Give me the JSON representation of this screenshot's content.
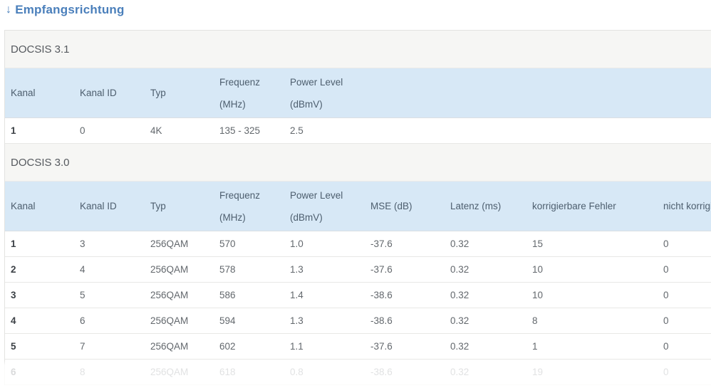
{
  "title": {
    "arrow": "↓",
    "text": "Empfangsrichtung"
  },
  "theme": {
    "accent_blue": "#4a7fbb",
    "table_header_bg": "#d7e8f6",
    "section_header_bg": "#f6f6f4"
  },
  "sections": [
    {
      "name": "DOCSIS 3.1",
      "grid": "grid-31",
      "columns": [
        {
          "lines": [
            "Kanal"
          ]
        },
        {
          "lines": [
            "Kanal ID"
          ]
        },
        {
          "lines": [
            "Typ"
          ]
        },
        {
          "lines": [
            "Frequenz",
            "(MHz)"
          ]
        },
        {
          "lines": [
            "Power Level",
            "(dBmV)"
          ]
        },
        {
          "lines": [
            ""
          ]
        }
      ],
      "rows": [
        [
          "1",
          "0",
          "4K",
          "135 - 325",
          "2.5",
          ""
        ]
      ],
      "last_row_faded": false
    },
    {
      "name": "DOCSIS 3.0",
      "grid": "grid-30",
      "columns": [
        {
          "lines": [
            "Kanal"
          ]
        },
        {
          "lines": [
            "Kanal ID"
          ]
        },
        {
          "lines": [
            "Typ"
          ]
        },
        {
          "lines": [
            "Frequenz",
            "(MHz)"
          ]
        },
        {
          "lines": [
            "Power Level",
            "(dBmV)"
          ]
        },
        {
          "lines": [
            "MSE (dB)"
          ]
        },
        {
          "lines": [
            "Latenz (ms)"
          ]
        },
        {
          "lines": [
            "korrigierbare Fehler"
          ]
        },
        {
          "lines": [
            "nicht korrigierbare Fehler"
          ]
        }
      ],
      "rows": [
        [
          "1",
          "3",
          "256QAM",
          "570",
          "1.0",
          "-37.6",
          "0.32",
          "15",
          "0"
        ],
        [
          "2",
          "4",
          "256QAM",
          "578",
          "1.3",
          "-37.6",
          "0.32",
          "10",
          "0"
        ],
        [
          "3",
          "5",
          "256QAM",
          "586",
          "1.4",
          "-38.6",
          "0.32",
          "10",
          "0"
        ],
        [
          "4",
          "6",
          "256QAM",
          "594",
          "1.3",
          "-38.6",
          "0.32",
          "8",
          "0"
        ],
        [
          "5",
          "7",
          "256QAM",
          "602",
          "1.1",
          "-37.6",
          "0.32",
          "1",
          "0"
        ],
        [
          "6",
          "8",
          "256QAM",
          "618",
          "0.8",
          "-38.6",
          "0.32",
          "19",
          "0"
        ]
      ],
      "last_row_faded": true
    }
  ]
}
